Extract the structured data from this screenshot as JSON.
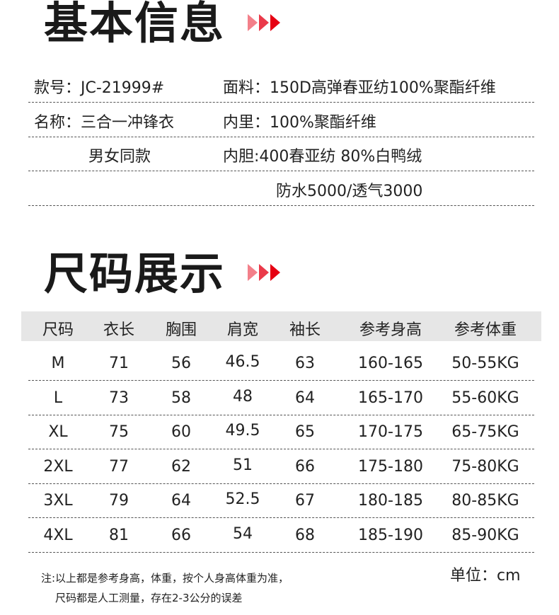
{
  "section1": {
    "title": "基本信息"
  },
  "info": [
    {
      "left": "款号：JC-21999#",
      "right": "面料：150D高弹春亚纺100%聚酯纤维"
    },
    {
      "left": "名称：三合一冲锋衣",
      "right": "内里：100%聚酯纤维"
    },
    {
      "left": "男女同款",
      "right": "内胆:400春亚纺 80%白鸭绒"
    },
    {
      "left": "",
      "right": "防水5000/透气3000"
    }
  ],
  "section2": {
    "title": "尺码展示"
  },
  "table": {
    "headers": [
      "尺码",
      "衣长",
      "胸围",
      "肩宽",
      "袖长",
      "参考身高",
      "参考体重"
    ],
    "rows": [
      [
        "M",
        "71",
        "56",
        "46.5",
        "63",
        "160-165",
        "50-55KG"
      ],
      [
        "L",
        "73",
        "58",
        "48",
        "64",
        "165-170",
        "55-60KG"
      ],
      [
        "XL",
        "75",
        "60",
        "49.5",
        "65",
        "170-175",
        "65-75KG"
      ],
      [
        "2XL",
        "77",
        "62",
        "51",
        "66",
        "175-180",
        "75-80KG"
      ],
      [
        "3XL",
        "79",
        "64",
        "52.5",
        "67",
        "180-185",
        "80-85KG"
      ],
      [
        "4XL",
        "81",
        "66",
        "54",
        "68",
        "185-190",
        "85-90KG"
      ]
    ]
  },
  "notes": {
    "line1": "注:以上都是参考身高，体重，按个人身高体重为准，",
    "line2": "尺码都是人工测量，存在2-3公分的误差",
    "unit": "单位：cm"
  },
  "colors": {
    "accent": "#e60012",
    "arrow_light": "#f3808a",
    "arrow_mid": "#ea3a4a",
    "header_bg": "#e6e6e6"
  }
}
